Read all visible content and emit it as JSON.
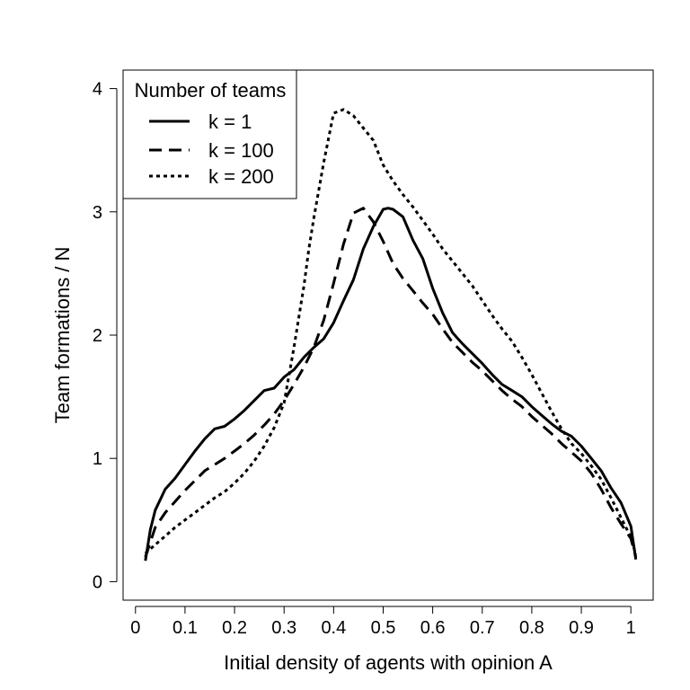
{
  "chart_data": {
    "type": "line",
    "title": "",
    "xlabel": "Initial density of agents with opinion A",
    "ylabel": "Team formations / N",
    "xlim": [
      -0.025,
      1.045
    ],
    "ylim": [
      -0.15,
      4.15
    ],
    "xticks": [
      0,
      0.1,
      0.2,
      0.3,
      0.4,
      0.5,
      0.6,
      0.7,
      0.8,
      0.9,
      1
    ],
    "xtick_labels": [
      "0",
      "0.1",
      "0.2",
      "0.3",
      "0.4",
      "0.5",
      "0.6",
      "0.7",
      "0.8",
      "0.9",
      "1"
    ],
    "yticks": [
      0,
      1,
      2,
      3,
      4
    ],
    "ytick_labels": [
      "0",
      "1",
      "2",
      "3",
      "4"
    ],
    "grid": false,
    "legend": {
      "title": "Number of teams",
      "position": "top-left"
    },
    "series": [
      {
        "name": "k = 1",
        "line_style": "solid",
        "x": [
          0.02,
          0.03,
          0.04,
          0.06,
          0.08,
          0.1,
          0.12,
          0.14,
          0.16,
          0.18,
          0.2,
          0.22,
          0.24,
          0.26,
          0.28,
          0.3,
          0.32,
          0.34,
          0.36,
          0.38,
          0.4,
          0.42,
          0.44,
          0.46,
          0.48,
          0.5,
          0.51,
          0.52,
          0.54,
          0.56,
          0.58,
          0.6,
          0.62,
          0.64,
          0.66,
          0.68,
          0.7,
          0.72,
          0.74,
          0.76,
          0.78,
          0.8,
          0.82,
          0.84,
          0.86,
          0.88,
          0.9,
          0.92,
          0.94,
          0.96,
          0.98,
          1.0,
          1.01
        ],
        "y": [
          0.17,
          0.42,
          0.58,
          0.75,
          0.84,
          0.95,
          1.06,
          1.16,
          1.24,
          1.26,
          1.32,
          1.39,
          1.47,
          1.55,
          1.57,
          1.66,
          1.72,
          1.82,
          1.9,
          1.97,
          2.1,
          2.28,
          2.45,
          2.7,
          2.88,
          3.02,
          3.03,
          3.02,
          2.96,
          2.77,
          2.62,
          2.38,
          2.18,
          2.02,
          1.93,
          1.85,
          1.77,
          1.68,
          1.6,
          1.55,
          1.5,
          1.42,
          1.35,
          1.28,
          1.22,
          1.18,
          1.1,
          1.0,
          0.9,
          0.76,
          0.64,
          0.45,
          0.18
        ]
      },
      {
        "name": "k = 100",
        "line_style": "dashed",
        "x": [
          0.02,
          0.04,
          0.06,
          0.08,
          0.1,
          0.12,
          0.14,
          0.16,
          0.18,
          0.2,
          0.22,
          0.24,
          0.26,
          0.28,
          0.3,
          0.32,
          0.34,
          0.36,
          0.38,
          0.4,
          0.42,
          0.44,
          0.46,
          0.48,
          0.5,
          0.52,
          0.54,
          0.56,
          0.58,
          0.6,
          0.62,
          0.64,
          0.66,
          0.68,
          0.7,
          0.72,
          0.74,
          0.76,
          0.78,
          0.8,
          0.82,
          0.84,
          0.86,
          0.88,
          0.9,
          0.92,
          0.94,
          0.96,
          0.98,
          1.0,
          1.01
        ],
        "y": [
          0.2,
          0.44,
          0.56,
          0.65,
          0.74,
          0.82,
          0.9,
          0.95,
          1.0,
          1.06,
          1.12,
          1.19,
          1.27,
          1.36,
          1.47,
          1.6,
          1.74,
          1.9,
          2.12,
          2.42,
          2.74,
          2.99,
          3.03,
          2.92,
          2.76,
          2.58,
          2.46,
          2.36,
          2.26,
          2.17,
          2.05,
          1.94,
          1.86,
          1.78,
          1.71,
          1.63,
          1.55,
          1.48,
          1.42,
          1.34,
          1.27,
          1.2,
          1.12,
          1.05,
          0.98,
          0.88,
          0.75,
          0.6,
          0.47,
          0.35,
          0.2
        ]
      },
      {
        "name": "k = 200",
        "line_style": "dotted",
        "x": [
          0.02,
          0.04,
          0.06,
          0.08,
          0.1,
          0.12,
          0.14,
          0.16,
          0.18,
          0.2,
          0.22,
          0.24,
          0.26,
          0.28,
          0.3,
          0.32,
          0.34,
          0.35,
          0.36,
          0.38,
          0.4,
          0.42,
          0.44,
          0.46,
          0.48,
          0.5,
          0.52,
          0.54,
          0.56,
          0.58,
          0.6,
          0.62,
          0.64,
          0.66,
          0.68,
          0.7,
          0.72,
          0.74,
          0.76,
          0.78,
          0.8,
          0.82,
          0.84,
          0.86,
          0.88,
          0.9,
          0.92,
          0.94,
          0.96,
          0.98,
          1.0,
          1.01
        ],
        "y": [
          0.23,
          0.3,
          0.37,
          0.44,
          0.5,
          0.56,
          0.62,
          0.68,
          0.73,
          0.8,
          0.88,
          0.98,
          1.1,
          1.25,
          1.45,
          1.9,
          2.4,
          2.7,
          2.95,
          3.4,
          3.8,
          3.83,
          3.78,
          3.68,
          3.58,
          3.38,
          3.25,
          3.14,
          3.04,
          2.93,
          2.82,
          2.7,
          2.6,
          2.5,
          2.4,
          2.28,
          2.16,
          2.05,
          1.95,
          1.82,
          1.68,
          1.53,
          1.38,
          1.24,
          1.12,
          1.04,
          0.94,
          0.83,
          0.68,
          0.52,
          0.36,
          0.22
        ]
      }
    ]
  }
}
